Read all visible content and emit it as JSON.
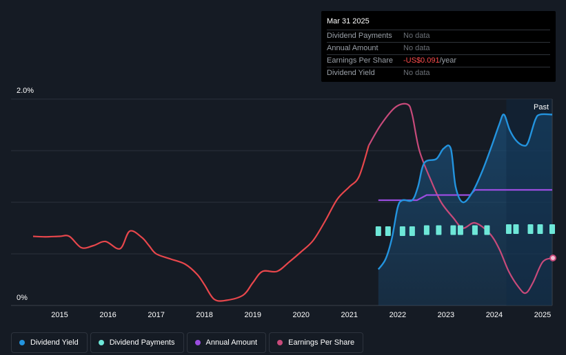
{
  "tooltip": {
    "date": "Mar 31 2025",
    "rows": [
      {
        "label": "Dividend Payments",
        "value": "No data"
      },
      {
        "label": "Annual Amount",
        "value": "No data"
      },
      {
        "label": "Earnings Per Share",
        "value": "-US$0.091",
        "unit": "/year"
      },
      {
        "label": "Dividend Yield",
        "value": "No data"
      }
    ]
  },
  "past_label": "Past",
  "legend": [
    {
      "label": "Dividend Yield",
      "color": "#2394df"
    },
    {
      "label": "Dividend Payments",
      "color": "#6ee7d8"
    },
    {
      "label": "Annual Amount",
      "color": "#9b4de0"
    },
    {
      "label": "Earnings Per Share",
      "color": "#c84a7a"
    }
  ],
  "chart_data": {
    "type": "line",
    "ylim": [
      0,
      2.0
    ],
    "xlim": [
      2014.45,
      2025.2
    ],
    "y_tick_labels": [
      "2.0%",
      "0%"
    ],
    "x_tick_labels": [
      "2015",
      "2016",
      "2017",
      "2018",
      "2019",
      "2020",
      "2021",
      "2022",
      "2023",
      "2024",
      "2025"
    ],
    "x_ticks": [
      2015,
      2016,
      2017,
      2018,
      2019,
      2020,
      2021,
      2022,
      2023,
      2024,
      2025
    ],
    "grid": true,
    "forecast_region_start": 2024.25,
    "colors": {
      "yield": "#2394df",
      "payments": "#6ee7d8",
      "annual": "#9b4de0",
      "eps_early": "#e8474c",
      "eps_late": "#c84a7a",
      "area": "#1b4e78"
    },
    "series": [
      {
        "name": "Dividend Yield",
        "points": [
          [
            2021.6,
            0.35
          ],
          [
            2021.75,
            0.45
          ],
          [
            2021.88,
            0.65
          ],
          [
            2022.0,
            0.95
          ],
          [
            2022.1,
            1.02
          ],
          [
            2022.3,
            1.02
          ],
          [
            2022.42,
            1.15
          ],
          [
            2022.55,
            1.38
          ],
          [
            2022.8,
            1.42
          ],
          [
            2022.95,
            1.52
          ],
          [
            2023.1,
            1.52
          ],
          [
            2023.2,
            1.15
          ],
          [
            2023.35,
            1.0
          ],
          [
            2023.55,
            1.1
          ],
          [
            2023.75,
            1.3
          ],
          [
            2023.95,
            1.55
          ],
          [
            2024.1,
            1.75
          ],
          [
            2024.2,
            1.85
          ],
          [
            2024.32,
            1.7
          ],
          [
            2024.45,
            1.6
          ],
          [
            2024.6,
            1.55
          ],
          [
            2024.7,
            1.58
          ],
          [
            2024.85,
            1.8
          ],
          [
            2024.95,
            1.85
          ],
          [
            2025.2,
            1.85
          ]
        ]
      },
      {
        "name": "Dividend Payments",
        "x": [
          2021.6,
          2021.8,
          2022.1,
          2022.3,
          2022.6,
          2022.85,
          2023.15,
          2023.3,
          2023.6,
          2023.85,
          2024.3,
          2024.45,
          2024.75,
          2024.95,
          2025.2
        ],
        "values": [
          0.72,
          0.72,
          0.72,
          0.72,
          0.73,
          0.73,
          0.73,
          0.73,
          0.73,
          0.73,
          0.74,
          0.74,
          0.74,
          0.74,
          0.74
        ]
      },
      {
        "name": "Annual Amount",
        "points": [
          [
            2021.6,
            1.02
          ],
          [
            2022.4,
            1.02
          ],
          [
            2022.6,
            1.07
          ],
          [
            2023.5,
            1.07
          ],
          [
            2023.6,
            1.12
          ],
          [
            2025.2,
            1.12
          ]
        ]
      },
      {
        "name": "Earnings Per Share",
        "points": [
          [
            2014.45,
            0.67
          ],
          [
            2014.7,
            0.665
          ],
          [
            2015.0,
            0.67
          ],
          [
            2015.2,
            0.67
          ],
          [
            2015.45,
            0.56
          ],
          [
            2015.7,
            0.58
          ],
          [
            2015.95,
            0.62
          ],
          [
            2016.25,
            0.55
          ],
          [
            2016.45,
            0.72
          ],
          [
            2016.7,
            0.66
          ],
          [
            2016.85,
            0.58
          ],
          [
            2017.0,
            0.5
          ],
          [
            2017.3,
            0.45
          ],
          [
            2017.6,
            0.4
          ],
          [
            2017.85,
            0.3
          ],
          [
            2018.0,
            0.2
          ],
          [
            2018.2,
            0.06
          ],
          [
            2018.45,
            0.05
          ],
          [
            2018.8,
            0.1
          ],
          [
            2019.0,
            0.22
          ],
          [
            2019.2,
            0.33
          ],
          [
            2019.5,
            0.33
          ],
          [
            2019.75,
            0.42
          ],
          [
            2020.0,
            0.52
          ],
          [
            2020.25,
            0.63
          ],
          [
            2020.5,
            0.82
          ],
          [
            2020.75,
            1.03
          ],
          [
            2021.0,
            1.15
          ],
          [
            2021.2,
            1.25
          ],
          [
            2021.4,
            1.55
          ],
          [
            2021.65,
            1.75
          ],
          [
            2021.95,
            1.92
          ],
          [
            2022.2,
            1.95
          ],
          [
            2022.3,
            1.85
          ],
          [
            2022.45,
            1.5
          ],
          [
            2022.7,
            1.2
          ],
          [
            2022.9,
            1.0
          ],
          [
            2023.15,
            0.85
          ],
          [
            2023.35,
            0.75
          ],
          [
            2023.6,
            0.8
          ],
          [
            2023.9,
            0.7
          ],
          [
            2024.1,
            0.55
          ],
          [
            2024.3,
            0.33
          ],
          [
            2024.5,
            0.18
          ],
          [
            2024.65,
            0.12
          ],
          [
            2024.8,
            0.22
          ],
          [
            2025.0,
            0.42
          ],
          [
            2025.2,
            0.46
          ]
        ],
        "split_at": 2021.35
      }
    ]
  }
}
